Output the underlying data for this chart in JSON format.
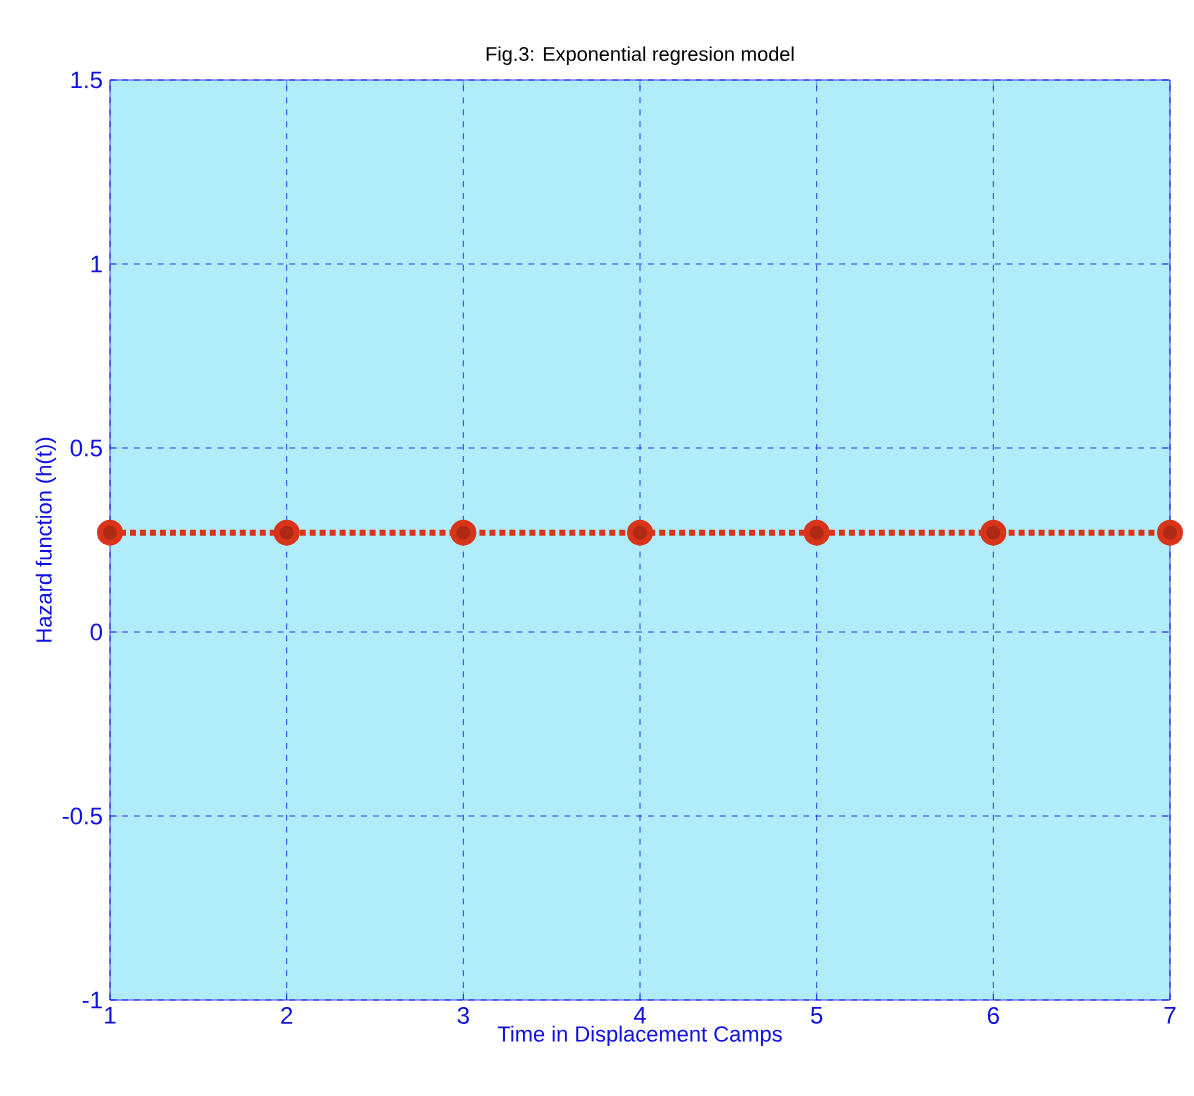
{
  "chart_data": {
    "type": "line",
    "title": "Fig.3: Exponential regresion model",
    "xlabel": "Time in Displacement Camps",
    "ylabel": "Hazard function (h(t))",
    "x": [
      1,
      2,
      3,
      4,
      5,
      6,
      7
    ],
    "series": [
      {
        "color": "#d9341a",
        "values": [
          0.27,
          0.27,
          0.27,
          0.27,
          0.27,
          0.27,
          0.27
        ]
      }
    ],
    "xlim": [
      1,
      7
    ],
    "xticks": [
      1,
      2,
      3,
      4,
      5,
      6,
      7
    ],
    "ylim": [
      -1,
      1.5
    ],
    "yticks": [
      -1,
      -0.5,
      0,
      0.5,
      1,
      1.5
    ],
    "grid": true,
    "marker": "circle",
    "line_style": "dotted"
  }
}
